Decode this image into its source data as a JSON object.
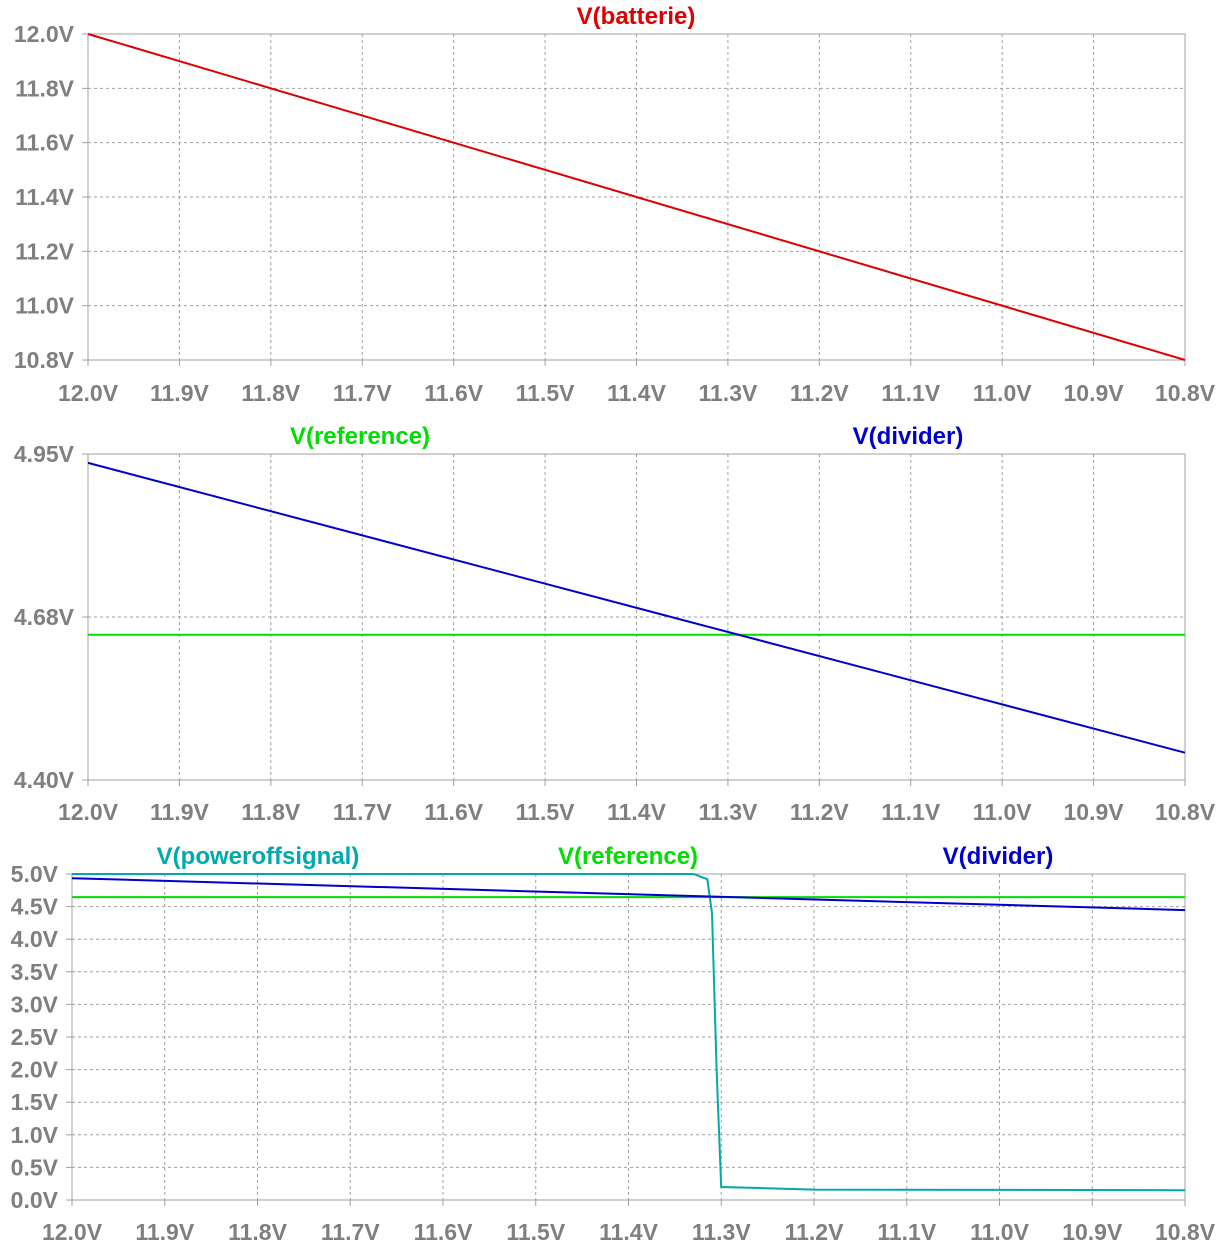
{
  "chart_data": [
    {
      "type": "line",
      "title": "",
      "xlabel": "",
      "ylabel": "",
      "xlim": [
        12.0,
        10.8
      ],
      "ylim": [
        10.8,
        12.0
      ],
      "x_ticks": [
        "12.0V",
        "11.9V",
        "11.8V",
        "11.7V",
        "11.6V",
        "11.5V",
        "11.4V",
        "11.3V",
        "11.2V",
        "11.1V",
        "11.0V",
        "10.9V",
        "10.8V"
      ],
      "y_ticks": [
        "12.0V",
        "11.8V",
        "11.6V",
        "11.4V",
        "11.2V",
        "11.0V",
        "10.8V"
      ],
      "grid": true,
      "series": [
        {
          "name": "V(batterie)",
          "color": "#dd0000",
          "x": [
            12.0,
            10.8
          ],
          "y": [
            12.0,
            10.8
          ]
        }
      ]
    },
    {
      "type": "line",
      "title": "",
      "xlabel": "",
      "ylabel": "",
      "xlim": [
        12.0,
        10.8
      ],
      "ylim": [
        4.4,
        4.95
      ],
      "x_ticks": [
        "12.0V",
        "11.9V",
        "11.8V",
        "11.7V",
        "11.6V",
        "11.5V",
        "11.4V",
        "11.3V",
        "11.2V",
        "11.1V",
        "11.0V",
        "10.9V",
        "10.8V"
      ],
      "y_ticks": [
        "4.95V",
        "4.68V",
        "4.40V"
      ],
      "grid": true,
      "series": [
        {
          "name": "V(reference)",
          "color": "#00dd00",
          "x": [
            12.0,
            10.8
          ],
          "y": [
            4.645,
            4.645
          ]
        },
        {
          "name": "V(divider)",
          "color": "#0000cc",
          "x": [
            12.0,
            10.8
          ],
          "y": [
            4.935,
            4.446
          ]
        }
      ]
    },
    {
      "type": "line",
      "title": "",
      "xlabel": "",
      "ylabel": "",
      "xlim": [
        12.0,
        10.8
      ],
      "ylim": [
        0.0,
        5.0
      ],
      "x_ticks": [
        "12.0V",
        "11.9V",
        "11.8V",
        "11.7V",
        "11.6V",
        "11.5V",
        "11.4V",
        "11.3V",
        "11.2V",
        "11.1V",
        "11.0V",
        "10.9V",
        "10.8V"
      ],
      "y_ticks": [
        "5.0V",
        "4.5V",
        "4.0V",
        "3.5V",
        "3.0V",
        "2.5V",
        "2.0V",
        "1.5V",
        "1.0V",
        "0.5V",
        "0.0V"
      ],
      "grid": true,
      "series": [
        {
          "name": "V(poweroffsignal)",
          "color": "#00aaaa",
          "x": [
            12.0,
            11.33,
            11.315,
            11.31,
            11.305,
            11.3,
            11.2,
            10.8
          ],
          "y": [
            5.0,
            5.0,
            4.92,
            4.4,
            2.0,
            0.2,
            0.16,
            0.15
          ]
        },
        {
          "name": "V(reference)",
          "color": "#00dd00",
          "x": [
            12.0,
            10.8
          ],
          "y": [
            4.645,
            4.645
          ]
        },
        {
          "name": "V(divider)",
          "color": "#0000cc",
          "x": [
            12.0,
            10.8
          ],
          "y": [
            4.935,
            4.446
          ]
        }
      ]
    }
  ]
}
